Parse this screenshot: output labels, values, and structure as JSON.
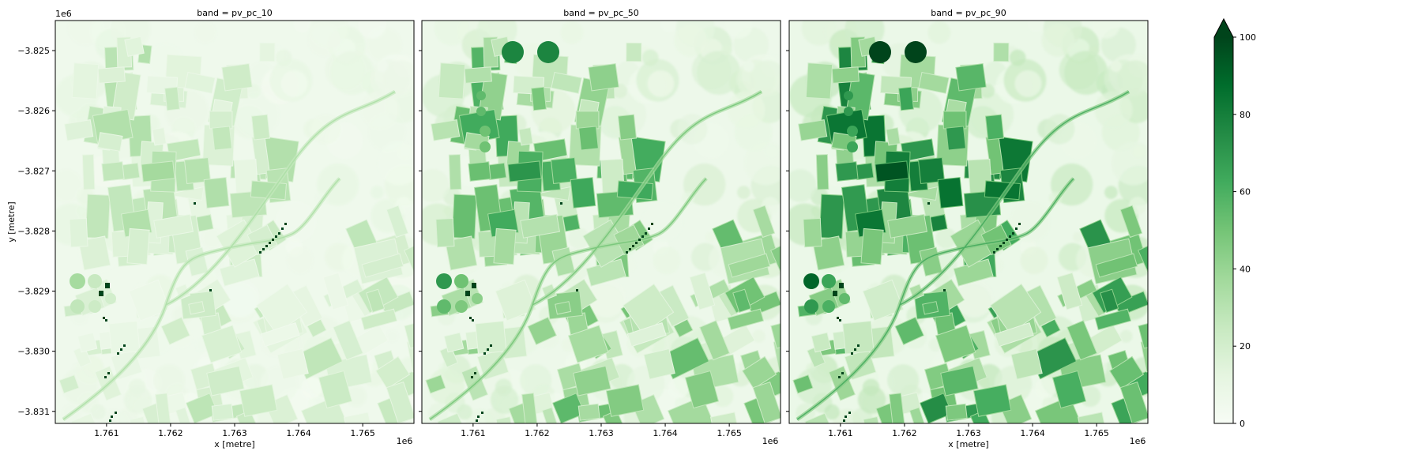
{
  "chart_data": {
    "type": "heatmap",
    "colormap": "Greens",
    "x_offset_label": "1e6",
    "y_offset_label": "1e6",
    "xlabel": "x [metre]",
    "ylabel": "y [metre]",
    "xlim": [
      1.7602,
      1.7658
    ],
    "ylim": [
      -3.8312,
      -3.8245
    ],
    "x_ticks": [
      1.761,
      1.762,
      1.763,
      1.764,
      1.765
    ],
    "x_tick_labels": [
      "1.761",
      "1.762",
      "1.763",
      "1.764",
      "1.765"
    ],
    "y_ticks": [
      -3.825,
      -3.826,
      -3.827,
      -3.828,
      -3.829,
      -3.83,
      -3.831
    ],
    "y_tick_labels": [
      "−3.825",
      "−3.826",
      "−3.827",
      "−3.828",
      "−3.829",
      "−3.830",
      "−3.831"
    ],
    "panels": [
      {
        "title": "band = pv_pc_10",
        "intensity": 0.45
      },
      {
        "title": "band = pv_pc_50",
        "intensity": 0.75
      },
      {
        "title": "band = pv_pc_90",
        "intensity": 1.0
      }
    ],
    "colorbar": {
      "range": [
        0,
        100
      ],
      "ticks": [
        0,
        20,
        40,
        60,
        80,
        100
      ],
      "tick_labels": [
        "0",
        "20",
        "40",
        "60",
        "80",
        "100"
      ],
      "extend": "max"
    },
    "grid": false
  }
}
